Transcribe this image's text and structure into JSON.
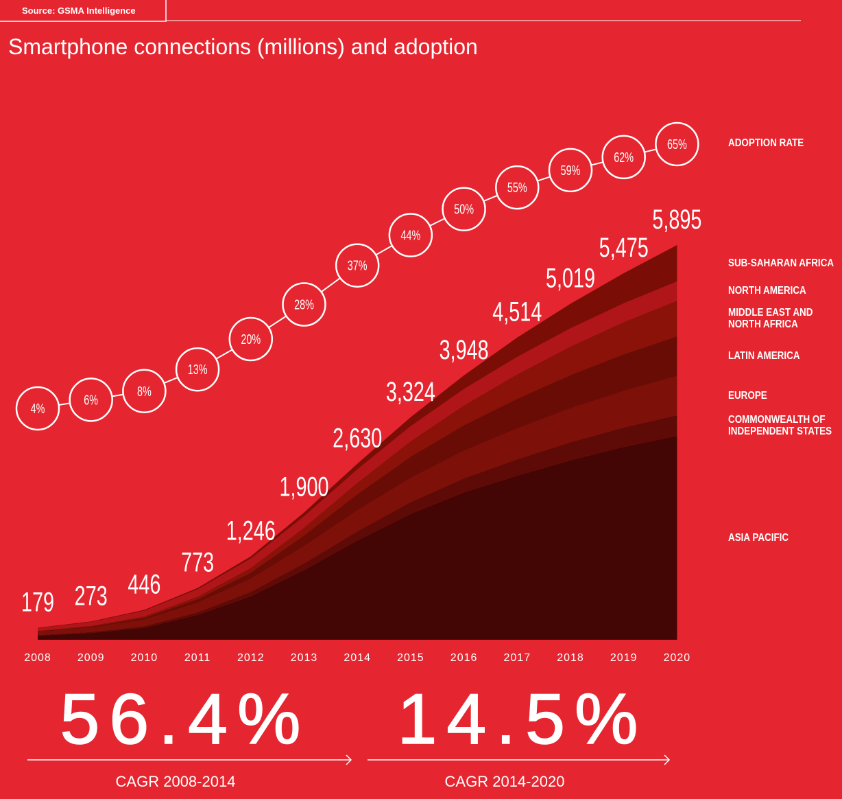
{
  "source": "Source: GSMA Intelligence",
  "chart_data": {
    "type": "stacked-area",
    "title": "Smartphone connections (millions) and adoption",
    "categories": [
      "2008",
      "2009",
      "2010",
      "2011",
      "2012",
      "2013",
      "2014",
      "2015",
      "2016",
      "2017",
      "2018",
      "2019",
      "2020"
    ],
    "series": [
      {
        "name": "ASIA PACIFIC",
        "color": "#440505",
        "values": [
          60,
          100,
          180,
          370,
          650,
          1040,
          1480,
          1880,
          2200,
          2450,
          2680,
          2880,
          3045
        ]
      },
      {
        "name": "COMMONWEALTH OF INDEPENDENT STATES",
        "color": "#5e0a07",
        "values": [
          10,
          15,
          24,
          40,
          65,
          100,
          140,
          175,
          210,
          245,
          270,
          290,
          308
        ]
      },
      {
        "name": "EUROPE",
        "color": "#7d1008",
        "values": [
          45,
          65,
          95,
          140,
          195,
          255,
          310,
          360,
          410,
          460,
          505,
          545,
          584
        ]
      },
      {
        "name": "LATIN AMERICA",
        "color": "#6a0c06",
        "values": [
          10,
          16,
          30,
          55,
          95,
          165,
          245,
          320,
          385,
          445,
          500,
          550,
          595
        ]
      },
      {
        "name": "MIDDLE EAST AND NORTH AFRICA",
        "color": "#8a1209",
        "values": [
          9,
          13,
          22,
          40,
          70,
          115,
          170,
          230,
          295,
          365,
          425,
          480,
          533
        ]
      },
      {
        "name": "NORTH AMERICA",
        "color": "#b0151a",
        "values": [
          40,
          56,
          82,
          108,
          138,
          170,
          200,
          225,
          245,
          260,
          272,
          280,
          287
        ]
      },
      {
        "name": "SUB-SAHARAN AFRICA",
        "color": "#7a0e07",
        "values": [
          5,
          8,
          13,
          20,
          33,
          55,
          85,
          134,
          203,
          289,
          367,
          450,
          543
        ]
      }
    ],
    "totals": {
      "values": [
        179,
        273,
        446,
        773,
        1246,
        1900,
        2630,
        3324,
        3948,
        4514,
        5019,
        5475,
        5895
      ],
      "value_labels": [
        "179",
        "273",
        "446",
        "773",
        "1,246",
        "1,900",
        "2,630",
        "3,324",
        "3,948",
        "4,514",
        "5,019",
        "5,475",
        "5,895"
      ]
    },
    "adoption": {
      "name": "ADOPTION RATE",
      "values": [
        4,
        6,
        8,
        13,
        20,
        28,
        37,
        44,
        50,
        55,
        59,
        62,
        65
      ],
      "value_labels": [
        "4%",
        "6%",
        "8%",
        "13%",
        "20%",
        "28%",
        "37%",
        "44%",
        "50%",
        "55%",
        "59%",
        "62%",
        "65%"
      ]
    }
  },
  "cagr": [
    {
      "rate": "56.4%",
      "label": "CAGR 2008-2014"
    },
    {
      "rate": "14.5%",
      "label": "CAGR 2014-2020"
    }
  ]
}
